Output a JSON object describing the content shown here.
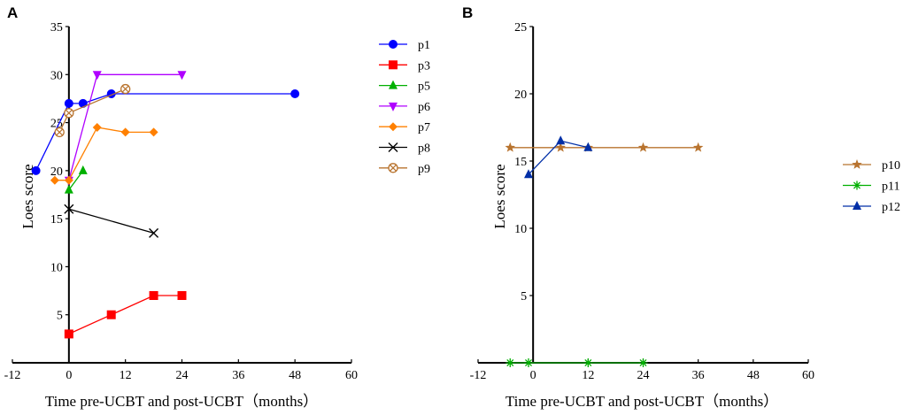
{
  "chart_data": [
    {
      "panel": "A",
      "type": "line",
      "title": "",
      "xlabel": "Time pre-UCBT and post-UCBT（months）",
      "ylabel": "Loes score",
      "xlim": [
        -12,
        60
      ],
      "ylim": [
        0,
        35
      ],
      "xticks": [
        -12,
        0,
        12,
        24,
        36,
        48,
        60
      ],
      "yticks": [
        5,
        10,
        15,
        20,
        25,
        30,
        35
      ],
      "grid": false,
      "legend_position": "right",
      "series": [
        {
          "name": "p1",
          "color": "#0000ff",
          "marker": "circle",
          "x": [
            -7,
            0,
            3,
            9,
            48
          ],
          "y": [
            20,
            27,
            27,
            28,
            28
          ]
        },
        {
          "name": "p3",
          "color": "#ff0000",
          "marker": "square",
          "x": [
            0,
            9,
            18,
            24
          ],
          "y": [
            3,
            5,
            7,
            7
          ]
        },
        {
          "name": "p5",
          "color": "#00b000",
          "marker": "triangle-up",
          "x": [
            0,
            3
          ],
          "y": [
            18,
            20
          ]
        },
        {
          "name": "p6",
          "color": "#b000ff",
          "marker": "triangle-down",
          "x": [
            0,
            6,
            24
          ],
          "y": [
            19,
            30,
            30
          ]
        },
        {
          "name": "p7",
          "color": "#ff8000",
          "marker": "diamond",
          "x": [
            -3,
            0,
            6,
            12,
            18
          ],
          "y": [
            19,
            19,
            24.5,
            24,
            24
          ]
        },
        {
          "name": "p8",
          "color": "#000000",
          "marker": "x",
          "x": [
            0,
            18
          ],
          "y": [
            16,
            13.5
          ]
        },
        {
          "name": "p9",
          "color": "#b8732e",
          "marker": "circle-x",
          "x": [
            -2,
            0,
            12
          ],
          "y": [
            24,
            26,
            28.5
          ]
        }
      ]
    },
    {
      "panel": "B",
      "type": "line",
      "title": "",
      "xlabel": "Time pre-UCBT and post-UCBT（months）",
      "ylabel": "Loes score",
      "xlim": [
        -12,
        60
      ],
      "ylim": [
        0,
        25
      ],
      "xticks": [
        -12,
        0,
        12,
        24,
        36,
        48,
        60
      ],
      "yticks": [
        5,
        10,
        15,
        20,
        25
      ],
      "grid": false,
      "legend_position": "right",
      "series": [
        {
          "name": "p10",
          "color": "#b8732e",
          "marker": "star",
          "x": [
            -5,
            6,
            12,
            24,
            36
          ],
          "y": [
            16,
            16,
            16,
            16,
            16
          ]
        },
        {
          "name": "p11",
          "color": "#00b000",
          "marker": "asterisk",
          "x": [
            -5,
            -1,
            12,
            24
          ],
          "y": [
            0,
            0,
            0,
            0
          ]
        },
        {
          "name": "p12",
          "color": "#002fa7",
          "marker": "triangle-up",
          "x": [
            -1,
            6,
            12
          ],
          "y": [
            14,
            16.5,
            16
          ]
        }
      ]
    }
  ]
}
